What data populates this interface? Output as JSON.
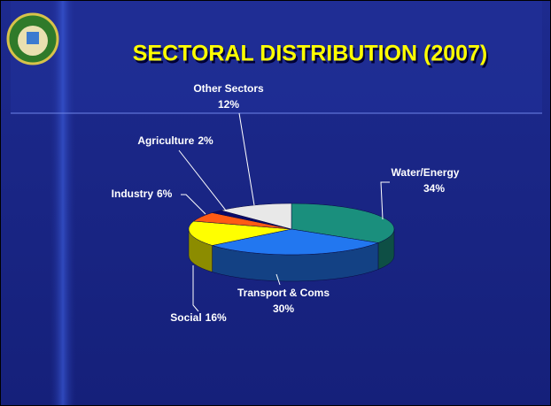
{
  "chart_data": {
    "type": "pie3d",
    "title": "SECTORAL DISTRIBUTION (2007)",
    "categories": [
      "Water/Energy",
      "Transport & Coms",
      "Social",
      "Industry",
      "Agriculture",
      "Other Sectors"
    ],
    "values": [
      34,
      30,
      16,
      6,
      2,
      12
    ],
    "value_labels": [
      "34%",
      "30%",
      "16%",
      "6%",
      "2%",
      "12%"
    ],
    "colors": [
      "#1a8f7d",
      "#2277f0",
      "#ffff00",
      "#ff5a14",
      "#0a0a6a",
      "#e8e8e8"
    ]
  }
}
